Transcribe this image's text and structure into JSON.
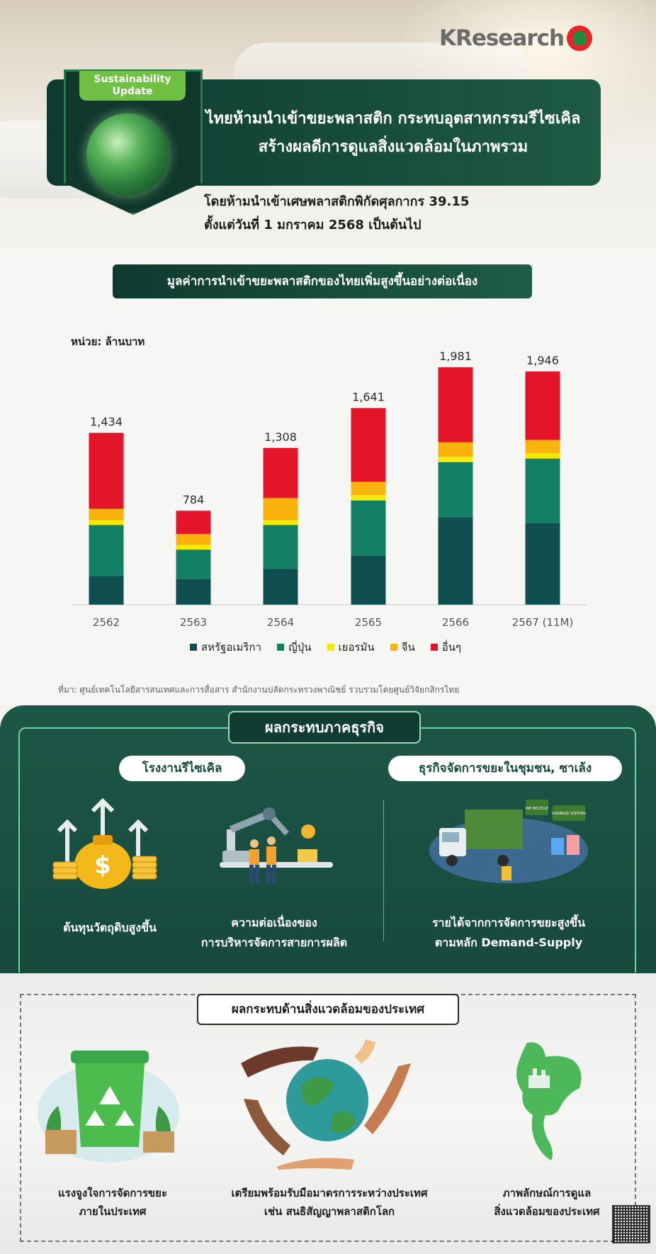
{
  "brand": {
    "name": "KResearch"
  },
  "badge": {
    "line1": "Sustainability",
    "line2": "Update"
  },
  "headline": {
    "line1": "ไทยห้ามนำเข้าขยะพลาสติก กระทบอุตสาหกรรมรีไซเคิล",
    "line2": "สร้างผลดีการดูแลสิ่งแวดล้อมในภาพรวม"
  },
  "subheadline": {
    "line1": "โดยห้ามนำเข้าเศษพลาสติกพิกัดศุลกากร 39.15",
    "line2": "ตั้งแต่วันที่ 1 มกราคม 2568 เป็นต้นไป"
  },
  "chart_section": {
    "header": "มูลค่าการนำเข้าขยะพลาสติกของไทยเพิ่มสูงขึ้นอย่างต่อเนื่อง",
    "unit": "หน่วย: ล้านบาท",
    "source": "ที่มา: ศูนย์เทคโนโลยีสารสนเทศและการสื่อสาร สำนักงานปลัดกระทรวงพาณิชย์ รวบรวมโดยศูนย์วิจัยกสิกรไทย"
  },
  "chart_data": {
    "type": "bar",
    "stacked": true,
    "title": "มูลค่าการนำเข้าขยะพลาสติกของไทยเพิ่มสูงขึ้นอย่างต่อเนื่อง",
    "ylabel": "หน่วย: ล้านบาท",
    "categories": [
      "2562",
      "2563",
      "2564",
      "2565",
      "2566",
      "2567 (11M)"
    ],
    "totals": [
      1434,
      784,
      1308,
      1641,
      1981,
      1946
    ],
    "series": [
      {
        "name": "สหรัฐอเมริกา",
        "color": "#0f4f50",
        "values": [
          240,
          215,
          300,
          410,
          730,
          680
        ]
      },
      {
        "name": "ญี่ปุ่น",
        "color": "#138066",
        "values": [
          425,
          245,
          365,
          460,
          460,
          540
        ]
      },
      {
        "name": "เยอรมัน",
        "color": "#f6ea00",
        "values": [
          40,
          40,
          40,
          45,
          45,
          45
        ]
      },
      {
        "name": "จีน",
        "color": "#f9b30c",
        "values": [
          95,
          90,
          185,
          110,
          120,
          110
        ]
      },
      {
        "name": "อื่นๆ",
        "color": "#e4152a",
        "values": [
          634,
          194,
          418,
          616,
          626,
          571
        ]
      }
    ],
    "ylim": [
      0,
      2100
    ],
    "grid": false,
    "legend": "bottom"
  },
  "business": {
    "title": "ผลกระทบภาคธุรกิจ",
    "recycle_pill": "โรงงานรีไซเคิล",
    "waste_pill": "ธุรกิจจัดการขยะในชุมชน, ซาเล้ง",
    "cost_line1": "ต้นทุนวัตถุดิบสูงขึ้น",
    "continuity_line1": "ความต่อเนื่องของ",
    "continuity_line2": "การบริหารจัดการสายการผลิต",
    "revenue_line1": "รายได้จากการจัดการขยะสูงขึ้น",
    "revenue_line2": "ตามหลัก Demand-Supply",
    "truck_sign1": "WE RECYCLE",
    "truck_sign2": "GARBAGE SORTING"
  },
  "environment": {
    "title": "ผลกระทบด้านสิ่งแวดล้อมของประเทศ",
    "item1_line1": "แรงจูงใจการจัดการขยะ",
    "item1_line2": "ภายในประเทศ",
    "item2_line1": "เตรียมพร้อมรับมือมาตรการระหว่างประเทศ",
    "item2_line2": "เช่น สนธิสัญญาพลาสติกโลก",
    "item3_line1": "ภาพลักษณ์การดูแล",
    "item3_line2": "สิ่งแวดล้อมของประเทศ"
  }
}
